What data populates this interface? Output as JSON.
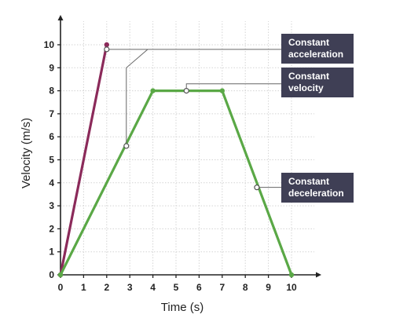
{
  "chart_data": {
    "type": "line",
    "xlabel": "Time (s)",
    "ylabel": "Velocity (m/s)",
    "xlim": [
      0,
      10
    ],
    "ylim": [
      0,
      10
    ],
    "x_ticks": [
      "0",
      "1",
      "2",
      "3",
      "4",
      "5",
      "6",
      "7",
      "8",
      "9",
      "10"
    ],
    "y_ticks": [
      "0",
      "1",
      "2",
      "3",
      "4",
      "5",
      "6",
      "7",
      "8",
      "9",
      "10"
    ],
    "grid": true,
    "series": [
      {
        "color": "#8b2a5a",
        "x": [
          0,
          2
        ],
        "y": [
          0,
          10
        ]
      },
      {
        "color": "#5aa846",
        "x": [
          0,
          4,
          7,
          10
        ],
        "y": [
          0,
          8,
          8,
          0
        ]
      }
    ],
    "annotations": [
      {
        "text": [
          "Constant",
          "acceleration"
        ],
        "points": [
          {
            "x": 2,
            "y": 9.8
          },
          {
            "x": 2.85,
            "y": 5.6
          }
        ]
      },
      {
        "text": [
          "Constant",
          "velocity"
        ],
        "points": [
          {
            "x": 5.45,
            "y": 8
          }
        ]
      },
      {
        "text": [
          "Constant",
          "deceleration"
        ],
        "points": [
          {
            "x": 8.5,
            "y": 3.8
          }
        ]
      }
    ],
    "colors": {
      "callout_bg": "#3f3f55",
      "axis": "#222222",
      "grid": "#d4d4d4"
    }
  }
}
